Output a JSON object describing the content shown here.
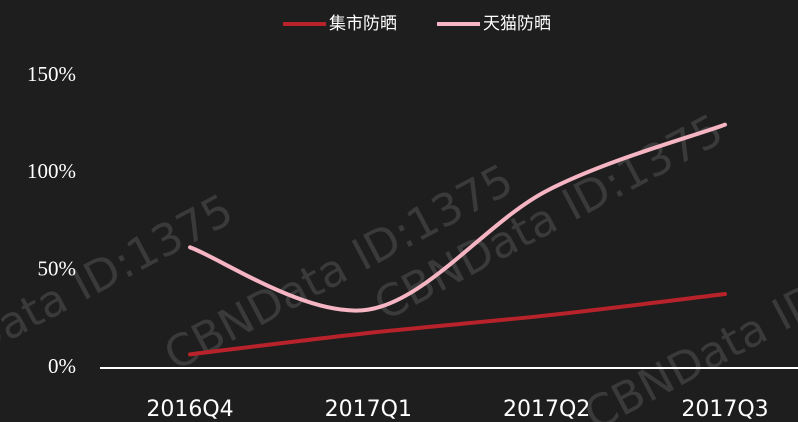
{
  "chart_data": {
    "type": "line",
    "categories": [
      "2016Q4",
      "2017Q1",
      "2017Q2",
      "2017Q3"
    ],
    "series": [
      {
        "name": "集市防晒",
        "color": "#b8222a",
        "values": [
          7,
          18,
          27,
          38
        ]
      },
      {
        "name": "天猫防晒",
        "color": "#f5b5c3",
        "values": [
          62,
          30,
          91,
          125
        ]
      }
    ],
    "ylim": [
      0,
      150
    ],
    "yticks": [
      {
        "value": 0,
        "label": "0%"
      },
      {
        "value": 50,
        "label": "50%"
      },
      {
        "value": 100,
        "label": "100%"
      },
      {
        "value": 150,
        "label": "150%"
      }
    ],
    "smooth": true,
    "legend": "top",
    "watermark": "CBNData ID:1375"
  }
}
